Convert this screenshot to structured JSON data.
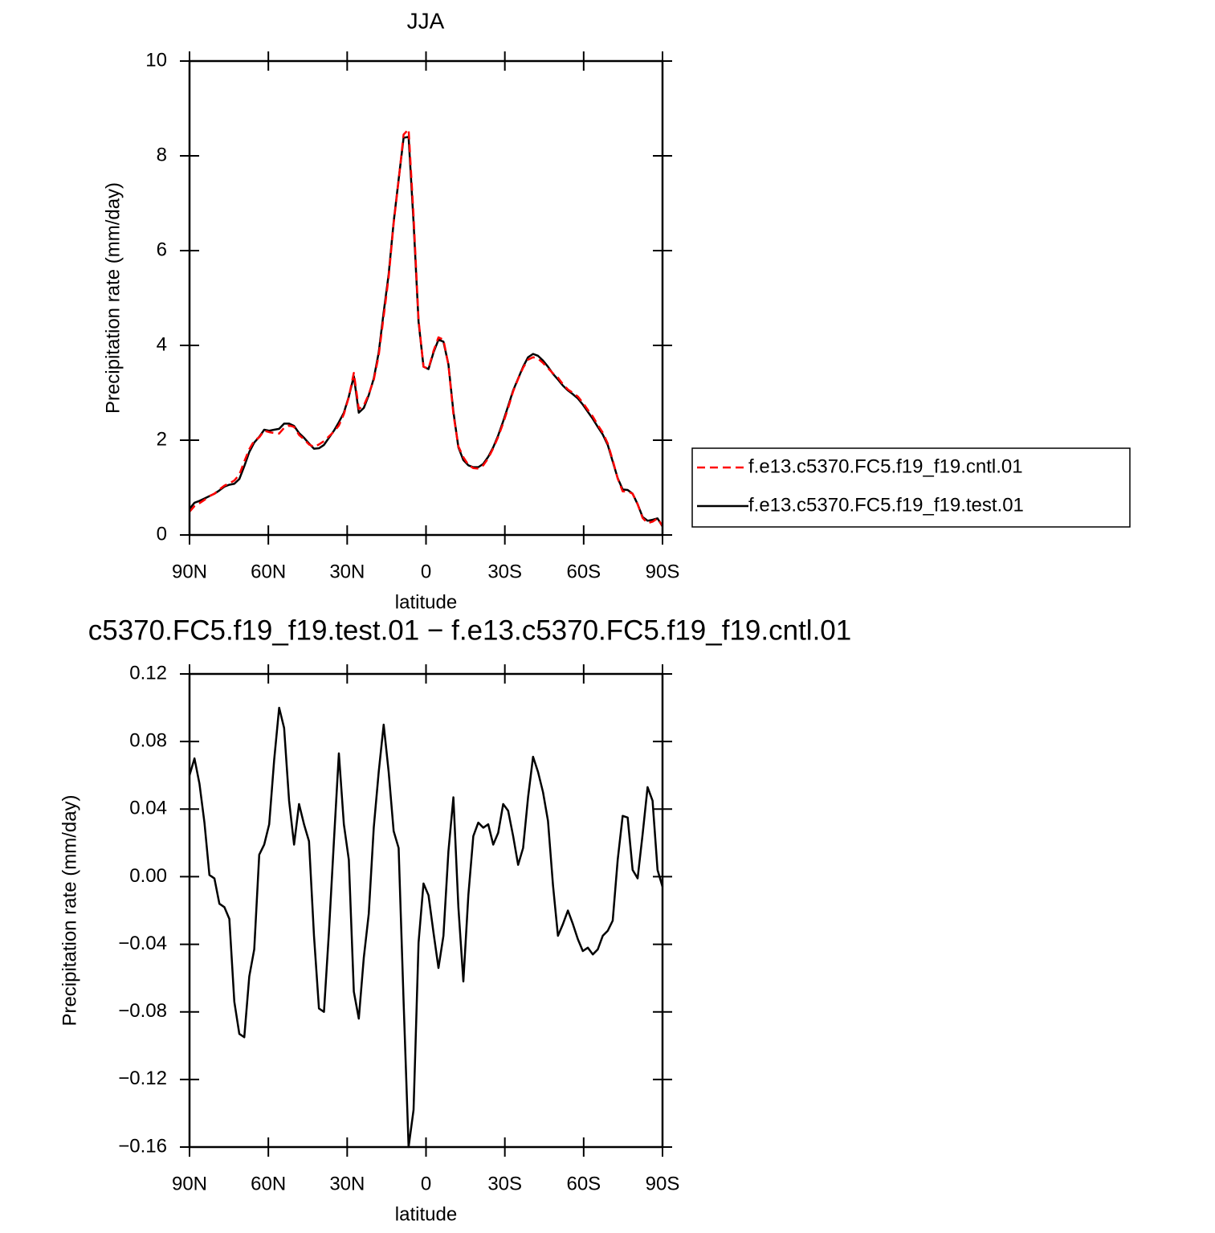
{
  "chart_data": [
    {
      "type": "line",
      "title": "JJA",
      "xlabel": "latitude",
      "ylabel": "Precipitation rate (mm/day)",
      "x": [
        90,
        88.11,
        86.21,
        84.32,
        82.42,
        80.53,
        78.63,
        76.74,
        74.84,
        72.95,
        71.05,
        69.16,
        67.26,
        65.37,
        63.47,
        61.58,
        59.68,
        57.79,
        55.89,
        54.0,
        52.11,
        50.21,
        48.32,
        46.42,
        44.53,
        42.63,
        40.74,
        38.84,
        36.95,
        35.05,
        33.16,
        31.26,
        29.37,
        27.47,
        25.58,
        23.68,
        21.79,
        19.89,
        18.0,
        16.11,
        14.21,
        12.32,
        10.42,
        8.53,
        6.63,
        4.74,
        2.84,
        0.95,
        -0.95,
        -2.84,
        -4.74,
        -6.63,
        -8.53,
        -10.42,
        -12.32,
        -14.21,
        -16.11,
        -18.0,
        -19.89,
        -21.79,
        -23.68,
        -25.58,
        -27.47,
        -29.37,
        -31.26,
        -33.16,
        -35.05,
        -36.95,
        -38.84,
        -40.74,
        -42.63,
        -44.53,
        -46.42,
        -48.32,
        -50.21,
        -52.11,
        -54.0,
        -55.89,
        -57.79,
        -59.68,
        -61.58,
        -63.47,
        -65.37,
        -67.26,
        -69.16,
        -71.05,
        -72.95,
        -74.84,
        -76.74,
        -78.63,
        -80.53,
        -82.42,
        -84.32,
        -86.21,
        -88.11,
        -90
      ],
      "series": [
        {
          "name": "f.e13.c5370.FC5.f19_f19.cntl.01",
          "color": "#ff0000",
          "dash": "dashed",
          "values": [
            0.49,
            0.61,
            0.67,
            0.74,
            0.82,
            0.87,
            0.96,
            1.04,
            1.09,
            1.15,
            1.27,
            1.55,
            1.81,
            1.99,
            2.06,
            2.2,
            2.17,
            2.15,
            2.14,
            2.26,
            2.31,
            2.28,
            2.11,
            2.02,
            1.91,
            1.86,
            1.91,
            1.98,
            2.08,
            2.18,
            2.31,
            2.55,
            2.91,
            3.42,
            2.66,
            2.73,
            2.97,
            3.27,
            3.79,
            4.61,
            5.44,
            6.57,
            7.48,
            8.45,
            8.56,
            6.74,
            4.54,
            3.55,
            3.51,
            3.88,
            4.17,
            4.12,
            3.59,
            2.55,
            1.87,
            1.64,
            1.48,
            1.41,
            1.4,
            1.47,
            1.62,
            1.83,
            2.07,
            2.36,
            2.68,
            3.03,
            3.29,
            3.53,
            3.7,
            3.75,
            3.72,
            3.63,
            3.52,
            3.41,
            3.32,
            3.18,
            3.07,
            3.0,
            2.92,
            2.79,
            2.64,
            2.5,
            2.32,
            2.16,
            1.93,
            1.58,
            1.19,
            0.92,
            0.92,
            0.87,
            0.65,
            0.36,
            0.25,
            0.28,
            0.35,
            0.19
          ]
        },
        {
          "name": "f.e13.c5370.FC5.f19_f19.test.01",
          "color": "#000000",
          "dash": "solid",
          "values": [
            0.55,
            0.68,
            0.72,
            0.77,
            0.82,
            0.87,
            0.94,
            1.02,
            1.06,
            1.08,
            1.18,
            1.45,
            1.75,
            1.95,
            2.07,
            2.22,
            2.2,
            2.22,
            2.24,
            2.35,
            2.35,
            2.3,
            2.15,
            2.05,
            1.93,
            1.82,
            1.83,
            1.9,
            2.05,
            2.2,
            2.38,
            2.58,
            2.92,
            3.35,
            2.58,
            2.68,
            2.95,
            3.3,
            3.85,
            4.7,
            5.5,
            6.6,
            7.5,
            8.38,
            8.4,
            6.6,
            4.5,
            3.55,
            3.5,
            3.85,
            4.12,
            4.08,
            3.6,
            2.6,
            1.85,
            1.58,
            1.47,
            1.43,
            1.43,
            1.5,
            1.65,
            1.85,
            2.1,
            2.4,
            2.72,
            3.05,
            3.3,
            3.55,
            3.75,
            3.82,
            3.78,
            3.68,
            3.55,
            3.4,
            3.28,
            3.15,
            3.05,
            2.97,
            2.88,
            2.75,
            2.6,
            2.45,
            2.28,
            2.12,
            1.9,
            1.55,
            1.2,
            0.96,
            0.95,
            0.87,
            0.65,
            0.38,
            0.3,
            0.32,
            0.35,
            0.18
          ]
        }
      ],
      "xlim": [
        90,
        -90
      ],
      "ylim": [
        0,
        10
      ],
      "xticks": [
        {
          "value": 90,
          "label": "90N"
        },
        {
          "value": 60,
          "label": "60N"
        },
        {
          "value": 30,
          "label": "30N"
        },
        0,
        {
          "value": -30,
          "label": "30S"
        },
        {
          "value": -60,
          "label": "60S"
        },
        {
          "value": -90,
          "label": "90S"
        }
      ],
      "yticks": [
        0,
        2,
        4,
        6,
        8,
        10
      ],
      "grid": false,
      "legend": "right"
    },
    {
      "type": "line",
      "title": "c5370.FC5.f19_f19.test.01 − f.e13.c5370.FC5.f19_f19.cntl.01",
      "xlabel": "latitude",
      "ylabel": "Precipitation rate (mm/day)",
      "x": [
        90,
        88.11,
        86.21,
        84.32,
        82.42,
        80.53,
        78.63,
        76.74,
        74.84,
        72.95,
        71.05,
        69.16,
        67.26,
        65.37,
        63.47,
        61.58,
        59.68,
        57.79,
        55.89,
        54.0,
        52.11,
        50.21,
        48.32,
        46.42,
        44.53,
        42.63,
        40.74,
        38.84,
        36.95,
        35.05,
        33.16,
        31.26,
        29.37,
        27.47,
        25.58,
        23.68,
        21.79,
        19.89,
        18.0,
        16.11,
        14.21,
        12.32,
        10.42,
        8.53,
        6.63,
        4.74,
        2.84,
        0.95,
        -0.95,
        -2.84,
        -4.74,
        -6.63,
        -8.53,
        -10.42,
        -12.32,
        -14.21,
        -16.11,
        -18.0,
        -19.89,
        -21.79,
        -23.68,
        -25.58,
        -27.47,
        -29.37,
        -31.26,
        -33.16,
        -35.05,
        -36.95,
        -38.84,
        -40.74,
        -42.63,
        -44.53,
        -46.42,
        -48.32,
        -50.21,
        -52.11,
        -54.0,
        -55.89,
        -57.79,
        -59.68,
        -61.58,
        -63.47,
        -65.37,
        -67.26,
        -69.16,
        -71.05,
        -72.95,
        -74.84,
        -76.74,
        -78.63,
        -80.53,
        -82.42,
        -84.32,
        -86.21,
        -88.11,
        -90
      ],
      "series": [
        {
          "color": "#000000",
          "dash": "solid",
          "values": [
            0.06,
            0.07,
            0.055,
            0.032,
            0.001,
            -0.001,
            -0.016,
            -0.018,
            -0.025,
            -0.074,
            -0.093,
            -0.095,
            -0.059,
            -0.043,
            0.013,
            0.019,
            0.031,
            0.069,
            0.1,
            0.088,
            0.045,
            0.019,
            0.043,
            0.031,
            0.021,
            -0.035,
            -0.078,
            -0.08,
            -0.033,
            0.021,
            0.073,
            0.031,
            0.01,
            -0.068,
            -0.084,
            -0.048,
            -0.022,
            0.029,
            0.062,
            0.09,
            0.062,
            0.027,
            0.017,
            -0.074,
            -0.16,
            -0.138,
            -0.039,
            -0.004,
            -0.011,
            -0.033,
            -0.054,
            -0.035,
            0.015,
            0.047,
            -0.018,
            -0.062,
            -0.011,
            0.024,
            0.032,
            0.029,
            0.031,
            0.019,
            0.026,
            0.043,
            0.039,
            0.024,
            0.007,
            0.017,
            0.047,
            0.071,
            0.062,
            0.05,
            0.033,
            -0.005,
            -0.035,
            -0.028,
            -0.02,
            -0.028,
            -0.037,
            -0.044,
            -0.042,
            -0.046,
            -0.043,
            -0.035,
            -0.032,
            -0.026,
            0.01,
            0.036,
            0.035,
            0.004,
            -0.001,
            0.025,
            0.053,
            0.045,
            0.004,
            -0.006
          ]
        }
      ],
      "xlim": [
        90,
        -90
      ],
      "ylim": [
        -0.16,
        0.12
      ],
      "xticks": [
        {
          "value": 90,
          "label": "90N"
        },
        {
          "value": 60,
          "label": "60N"
        },
        {
          "value": 30,
          "label": "30N"
        },
        0,
        {
          "value": -30,
          "label": "30S"
        },
        {
          "value": -60,
          "label": "60S"
        },
        {
          "value": -90,
          "label": "90S"
        }
      ],
      "yticks": [
        {
          "value": -0.16,
          "label": "−0.16"
        },
        {
          "value": -0.12,
          "label": "−0.12"
        },
        {
          "value": -0.08,
          "label": "−0.08"
        },
        {
          "value": -0.04,
          "label": "−0.04"
        },
        {
          "value": 0,
          "label": "0.00"
        },
        0.04,
        0.08,
        0.12
      ],
      "grid": false
    }
  ]
}
